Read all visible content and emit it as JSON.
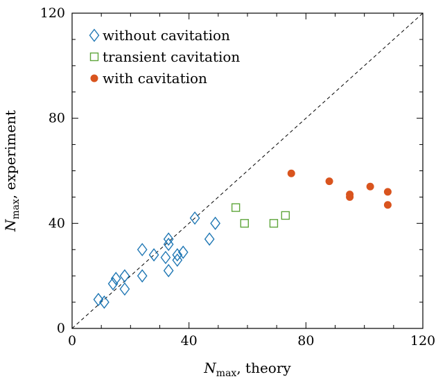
{
  "chart_data": {
    "type": "scatter",
    "xlabel": {
      "var": "N",
      "sub": "max",
      "rest": ", theory"
    },
    "ylabel": {
      "var": "N",
      "sub": "max",
      "rest": ", experiment"
    },
    "xlim": [
      0,
      120
    ],
    "ylim": [
      0,
      120
    ],
    "x_ticks": [
      0,
      40,
      80,
      120
    ],
    "y_ticks": [
      0,
      40,
      80,
      120
    ],
    "grid": false,
    "legend_position": "top-left",
    "reference_line": {
      "style": "dashed",
      "x": [
        0,
        120
      ],
      "y": [
        0,
        120
      ]
    },
    "series": [
      {
        "name": "without cavitation",
        "marker": "diamond-open",
        "color": "#1f77b4",
        "points": [
          [
            9,
            11
          ],
          [
            11,
            10
          ],
          [
            14,
            17
          ],
          [
            15,
            19
          ],
          [
            18,
            20
          ],
          [
            18,
            15
          ],
          [
            24,
            30
          ],
          [
            24,
            20
          ],
          [
            28,
            28
          ],
          [
            32,
            27
          ],
          [
            33,
            22
          ],
          [
            33,
            34
          ],
          [
            33,
            32
          ],
          [
            36,
            28
          ],
          [
            36,
            26
          ],
          [
            38,
            29
          ],
          [
            42,
            42
          ],
          [
            47,
            34
          ],
          [
            49,
            40
          ]
        ]
      },
      {
        "name": "transient cavitation",
        "marker": "square-open",
        "color": "#5ea53a",
        "points": [
          [
            56,
            46
          ],
          [
            59,
            40
          ],
          [
            69,
            40
          ],
          [
            73,
            43
          ]
        ]
      },
      {
        "name": "with cavitation",
        "marker": "circle-filled",
        "color": "#d9541e",
        "points": [
          [
            75,
            59
          ],
          [
            88,
            56
          ],
          [
            95,
            51
          ],
          [
            95,
            50
          ],
          [
            102,
            54
          ],
          [
            108,
            52
          ],
          [
            108,
            47
          ]
        ]
      }
    ]
  }
}
